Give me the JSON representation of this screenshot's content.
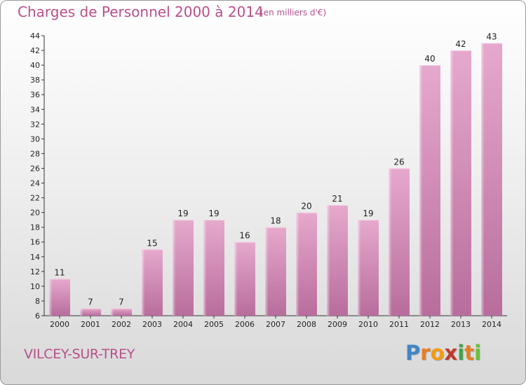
{
  "chart_data": {
    "type": "bar",
    "title": "Charges de Personnel 2000 à 2014",
    "subtitle": "(en milliers d'€)",
    "categories": [
      "2000",
      "2001",
      "2002",
      "2003",
      "2004",
      "2005",
      "2006",
      "2007",
      "2008",
      "2009",
      "2010",
      "2011",
      "2012",
      "2013",
      "2014"
    ],
    "values": [
      11,
      7,
      7,
      15,
      19,
      19,
      16,
      18,
      20,
      21,
      19,
      26,
      40,
      42,
      43
    ],
    "ylim": [
      6,
      44
    ],
    "yticks": [
      6,
      8,
      10,
      12,
      14,
      16,
      18,
      20,
      22,
      24,
      26,
      28,
      30,
      32,
      34,
      36,
      38,
      40,
      42,
      44
    ],
    "xlabel": "",
    "ylabel": "",
    "grid": false,
    "bar_color": "#d98fbb"
  },
  "footer": {
    "city": "VILCEY-SUR-TREY",
    "logo_letters": [
      "P",
      "r",
      "o",
      "x",
      "i",
      "t",
      "i"
    ],
    "logo_colors": [
      "#3f86c8",
      "#e67e22",
      "#f39c12",
      "#c0392b",
      "#3fa34d",
      "#e67e22",
      "#6bbf3a"
    ]
  }
}
